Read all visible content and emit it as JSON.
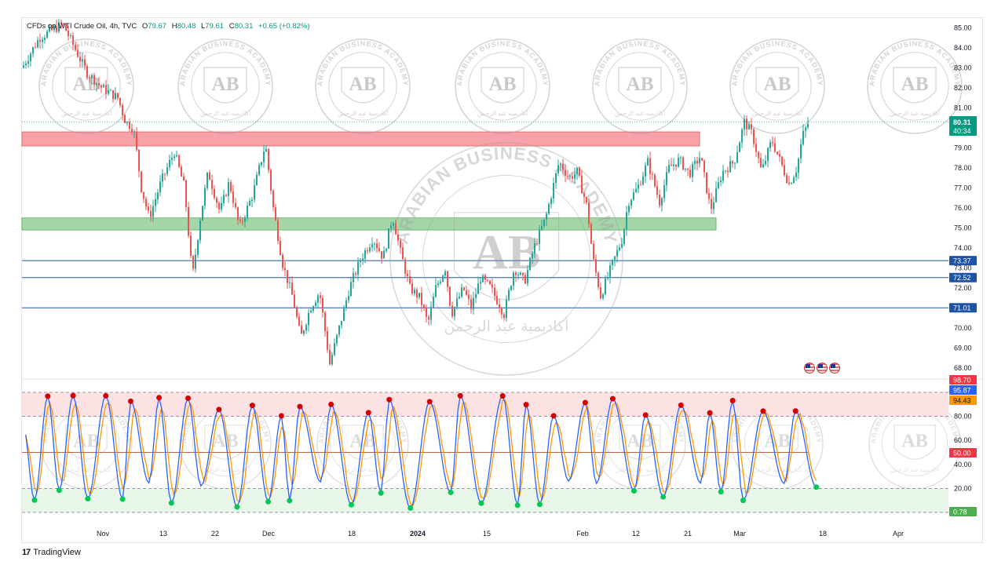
{
  "header": {
    "symbol": "CFDs on WTI Crude Oil, 4h, TVC",
    "o_label": "O",
    "o_value": "79.67",
    "h_label": "H",
    "h_value": "80.48",
    "l_label": "L",
    "l_value": "79.61",
    "c_label": "C",
    "c_value": "80.31",
    "change": "+0.65 (+0.82%)"
  },
  "footer": {
    "brand": "TradingView",
    "logo": "17"
  },
  "watermark": {
    "ring_text": "ARABIAN BUSINESS ACADEMY",
    "initials": "AB",
    "arabic_text": "أكاديمية عبد الرحمن"
  },
  "price_axis": {
    "ticks": [
      "85.00",
      "84.00",
      "83.00",
      "82.00",
      "81.00",
      "80.00",
      "79.00",
      "78.00",
      "77.00",
      "76.00",
      "75.00",
      "74.00",
      "73.00",
      "72.00",
      "71.00",
      "70.00",
      "69.00",
      "68.00"
    ],
    "current_price": "80.31",
    "countdown": "40:34",
    "level_labels": [
      "73.37",
      "72.52",
      "71.01"
    ]
  },
  "osc_axis": {
    "ticks": [
      "80.00",
      "60.00",
      "40.00",
      "20.00"
    ],
    "labels": [
      {
        "text": "98.70",
        "color": "#f23645"
      },
      {
        "text": "95.87",
        "color": "#2962ff"
      },
      {
        "text": "94.43",
        "color": "#ff9800"
      },
      {
        "text": "50.00",
        "color": "#f23645"
      },
      {
        "text": "0.78",
        "color": "#4caf50"
      }
    ]
  },
  "time_axis": [
    "Nov",
    "13",
    "22",
    "Dec",
    "18",
    "2024",
    "15",
    "Feb",
    "12",
    "21",
    "Mar",
    "18",
    "Apr"
  ],
  "zones": {
    "resistance": {
      "from": 79.1,
      "to": 79.8,
      "color": "#f7a1a9"
    },
    "support": {
      "from": 74.9,
      "to": 75.5,
      "color": "#a5d6a7"
    }
  },
  "levels": [
    73.37,
    72.52,
    71.01
  ],
  "colors": {
    "up": "#26a69a",
    "down": "#ef5350",
    "stoch_k": "#2962ff",
    "stoch_d": "#ff9800",
    "level_line": "#1e53a5",
    "overbought_fill": "#fde2e4",
    "oversold_fill": "#e8f5e9"
  },
  "events_icon": "us-flag-icon"
}
